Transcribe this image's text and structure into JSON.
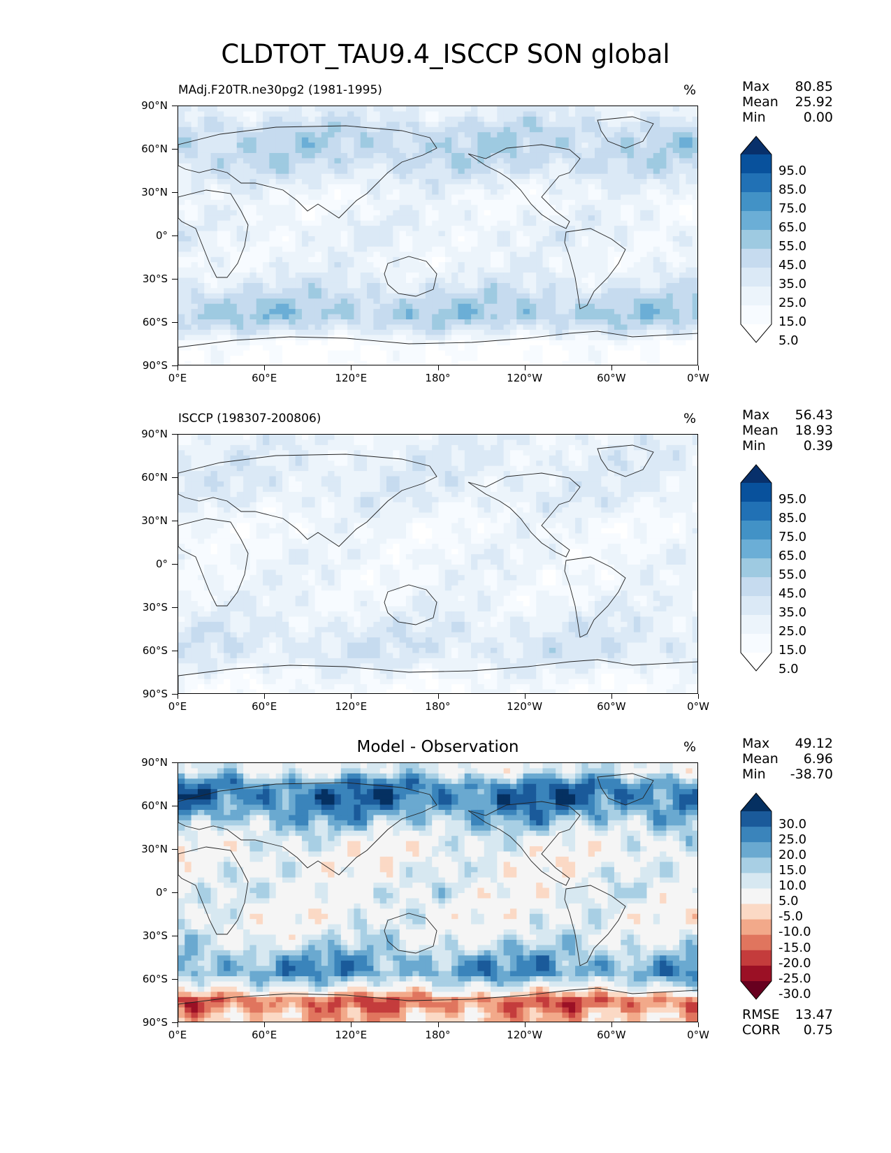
{
  "title": "CLDTOT_TAU9.4_ISCCP SON global",
  "y_ticks": [
    "90°N",
    "60°N",
    "30°N",
    "0°",
    "30°S",
    "60°S",
    "90°S"
  ],
  "x_ticks": [
    "0°E",
    "60°E",
    "120°E",
    "180°",
    "120°W",
    "60°W",
    "0°W"
  ],
  "panels": [
    {
      "id": "model",
      "left_title": "MAdj.F20TR.ne30pg2 (1981-1995)",
      "center_title": "",
      "units": "%",
      "stats": [
        {
          "label": "Max",
          "value": "80.85"
        },
        {
          "label": "Mean",
          "value": "25.92"
        },
        {
          "label": "Min",
          "value": "0.00"
        }
      ],
      "colorbar": {
        "labels": [
          "95.0",
          "85.0",
          "75.0",
          "65.0",
          "55.0",
          "45.0",
          "35.0",
          "25.0",
          "15.0",
          "5.0"
        ],
        "colors": [
          "#08306b",
          "#08519c",
          "#2171b5",
          "#4292c6",
          "#6baed6",
          "#9ecae1",
          "#c6dbef",
          "#dbe9f6",
          "#ecf4fb",
          "#f7fbff",
          "#ffffff"
        ]
      }
    },
    {
      "id": "obs",
      "left_title": "ISCCP (198307-200806)",
      "center_title": "",
      "units": "%",
      "stats": [
        {
          "label": "Max",
          "value": "56.43"
        },
        {
          "label": "Mean",
          "value": "18.93"
        },
        {
          "label": "Min",
          "value": "0.39"
        }
      ],
      "colorbar": {
        "labels": [
          "95.0",
          "85.0",
          "75.0",
          "65.0",
          "55.0",
          "45.0",
          "35.0",
          "25.0",
          "15.0",
          "5.0"
        ],
        "colors": [
          "#08306b",
          "#08519c",
          "#2171b5",
          "#4292c6",
          "#6baed6",
          "#9ecae1",
          "#c6dbef",
          "#dbe9f6",
          "#ecf4fb",
          "#f7fbff",
          "#ffffff"
        ]
      }
    },
    {
      "id": "diff",
      "left_title": "",
      "center_title": "Model - Observation",
      "units": "%",
      "stats": [
        {
          "label": "Max",
          "value": "49.12"
        },
        {
          "label": "Mean",
          "value": "6.96"
        },
        {
          "label": "Min",
          "value": "-38.70"
        }
      ],
      "colorbar": {
        "labels": [
          "30.0",
          "25.0",
          "20.0",
          "15.0",
          "10.0",
          "5.0",
          "-5.0",
          "-10.0",
          "-15.0",
          "-20.0",
          "-25.0",
          "-30.0"
        ],
        "colors": [
          "#053061",
          "#1a5a9a",
          "#3a84bb",
          "#6aa9d0",
          "#a8cfe4",
          "#d7e8f1",
          "#f5f5f5",
          "#fbd9c5",
          "#f2a98a",
          "#e0755e",
          "#c43c3c",
          "#9b1025",
          "#67001f"
        ]
      },
      "footer_stats": [
        {
          "label": "RMSE",
          "value": "13.47"
        },
        {
          "label": "CORR",
          "value": "0.75"
        }
      ]
    }
  ],
  "chart_data": [
    {
      "type": "heatmap",
      "title": "MAdj.F20TR.ne30pg2 (1981-1995)",
      "units": "%",
      "xlim": [
        0,
        360
      ],
      "ylim": [
        -90,
        90
      ],
      "levels": [
        5,
        15,
        25,
        35,
        45,
        55,
        65,
        75,
        85,
        95
      ],
      "zonal_mean_profile": {
        "lat": [
          85,
          75,
          65,
          55,
          45,
          35,
          25,
          15,
          5,
          -5,
          -15,
          -25,
          -35,
          -45,
          -55,
          -65,
          -75,
          -85
        ],
        "value": [
          25,
          38,
          42,
          40,
          33,
          22,
          15,
          18,
          22,
          20,
          18,
          22,
          30,
          42,
          48,
          30,
          5,
          3
        ]
      },
      "stats": {
        "max": 80.85,
        "mean": 25.92,
        "min": 0.0
      }
    },
    {
      "type": "heatmap",
      "title": "ISCCP (198307-200806)",
      "units": "%",
      "xlim": [
        0,
        360
      ],
      "ylim": [
        -90,
        90
      ],
      "levels": [
        5,
        15,
        25,
        35,
        45,
        55,
        65,
        75,
        85,
        95
      ],
      "zonal_mean_profile": {
        "lat": [
          85,
          75,
          65,
          55,
          45,
          35,
          25,
          15,
          5,
          -5,
          -15,
          -25,
          -35,
          -45,
          -55,
          -65,
          -75,
          -85
        ],
        "value": [
          22,
          24,
          26,
          25,
          24,
          18,
          14,
          15,
          18,
          17,
          16,
          18,
          22,
          27,
          30,
          28,
          18,
          10
        ]
      },
      "stats": {
        "max": 56.43,
        "mean": 18.93,
        "min": 0.39
      }
    },
    {
      "type": "heatmap",
      "title": "Model - Observation",
      "units": "%",
      "xlim": [
        0,
        360
      ],
      "ylim": [
        -90,
        90
      ],
      "levels": [
        -30,
        -25,
        -20,
        -15,
        -10,
        -5,
        5,
        10,
        15,
        20,
        25,
        30
      ],
      "zonal_mean_profile": {
        "lat": [
          85,
          75,
          65,
          55,
          45,
          35,
          25,
          15,
          5,
          -5,
          -15,
          -25,
          -35,
          -45,
          -55,
          -65,
          -75,
          -85
        ],
        "value": [
          5,
          22,
          25,
          18,
          10,
          3,
          1,
          3,
          4,
          3,
          2,
          4,
          8,
          16,
          20,
          4,
          -20,
          -10
        ]
      },
      "stats": {
        "max": 49.12,
        "mean": 6.96,
        "min": -38.7,
        "rmse": 13.47,
        "corr": 0.75
      }
    }
  ]
}
